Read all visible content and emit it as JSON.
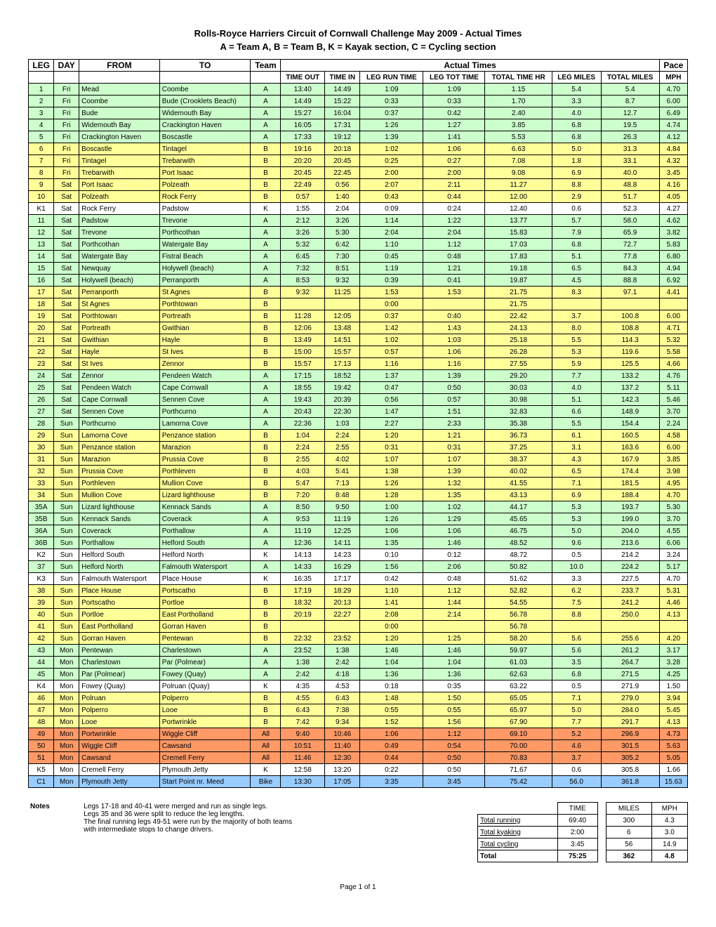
{
  "title": "Rolls-Royce Harriers Circuit of Cornwall Challenge May 2009 - Actual Times",
  "subtitle": "A = Team A, B = Team B, K = Kayak section, C = Cycling section",
  "footer": "Page 1 of 1",
  "headers": {
    "leg": "LEG",
    "day": "DAY",
    "from": "FROM",
    "to": "TO",
    "team": "Team",
    "actual_times": "Actual Times",
    "pace": "Pace",
    "time_out": "TIME OUT",
    "time_in": "TIME IN",
    "leg_run_time": "LEG RUN TIME",
    "leg_tot_time": "LEG TOT TIME",
    "total_time_hr": "TOTAL TIME HR",
    "leg_miles": "LEG MILES",
    "total_miles": "TOTAL MILES",
    "mph": "MPH"
  },
  "colors": {
    "A": "#ccffcc",
    "B": "#ffff99",
    "K": "#ffffff",
    "All": "#ff9966",
    "Bike": "#99ccff"
  },
  "rows": [
    {
      "leg": "1",
      "day": "Fri",
      "from": "Mead",
      "to": "Coombe",
      "team": "A",
      "out": "13:40",
      "in": "14:49",
      "run": "1:09",
      "tot": "1:09",
      "thr": "1.15",
      "lmi": "5.4",
      "tmi": "5.4",
      "mph": "4.70"
    },
    {
      "leg": "2",
      "day": "Fri",
      "from": "Coombe",
      "to": "Bude (Crooklets Beach)",
      "team": "A",
      "out": "14:49",
      "in": "15:22",
      "run": "0:33",
      "tot": "0:33",
      "thr": "1.70",
      "lmi": "3.3",
      "tmi": "8.7",
      "mph": "6.00"
    },
    {
      "leg": "3",
      "day": "Fri",
      "from": "Bude",
      "to": "Widemouth Bay",
      "team": "A",
      "out": "15:27",
      "in": "16:04",
      "run": "0:37",
      "tot": "0:42",
      "thr": "2.40",
      "lmi": "4.0",
      "tmi": "12.7",
      "mph": "6.49"
    },
    {
      "leg": "4",
      "day": "Fri",
      "from": "Widemouth Bay",
      "to": "Crackington Haven",
      "team": "A",
      "out": "16:05",
      "in": "17:31",
      "run": "1:26",
      "tot": "1:27",
      "thr": "3.85",
      "lmi": "6.8",
      "tmi": "19.5",
      "mph": "4.74"
    },
    {
      "leg": "5",
      "day": "Fri",
      "from": "Crackington Haven",
      "to": "Boscastle",
      "team": "A",
      "out": "17:33",
      "in": "19:12",
      "run": "1:39",
      "tot": "1:41",
      "thr": "5.53",
      "lmi": "6.8",
      "tmi": "26.3",
      "mph": "4.12"
    },
    {
      "leg": "6",
      "day": "Fri",
      "from": "Boscastle",
      "to": "Tintagel",
      "team": "B",
      "out": "19:16",
      "in": "20:18",
      "run": "1:02",
      "tot": "1:06",
      "thr": "6.63",
      "lmi": "5.0",
      "tmi": "31.3",
      "mph": "4.84"
    },
    {
      "leg": "7",
      "day": "Fri",
      "from": "Tintagel",
      "to": "Trebarwith",
      "team": "B",
      "out": "20:20",
      "in": "20:45",
      "run": "0:25",
      "tot": "0:27",
      "thr": "7.08",
      "lmi": "1.8",
      "tmi": "33.1",
      "mph": "4.32"
    },
    {
      "leg": "8",
      "day": "Fri",
      "from": "Trebarwith",
      "to": "Port Isaac",
      "team": "B",
      "out": "20:45",
      "in": "22:45",
      "run": "2:00",
      "tot": "2:00",
      "thr": "9.08",
      "lmi": "6.9",
      "tmi": "40.0",
      "mph": "3.45"
    },
    {
      "leg": "9",
      "day": "Sat",
      "from": "Port Isaac",
      "to": "Polzeath",
      "team": "B",
      "out": "22:49",
      "in": "0:56",
      "run": "2:07",
      "tot": "2:11",
      "thr": "11.27",
      "lmi": "8.8",
      "tmi": "48.8",
      "mph": "4.16"
    },
    {
      "leg": "10",
      "day": "Sat",
      "from": "Polzeath",
      "to": "Rock Ferry",
      "team": "B",
      "out": "0:57",
      "in": "1:40",
      "run": "0:43",
      "tot": "0:44",
      "thr": "12.00",
      "lmi": "2.9",
      "tmi": "51.7",
      "mph": "4.05"
    },
    {
      "leg": "K1",
      "day": "Sat",
      "from": "Rock Ferry",
      "to": "Padstow",
      "team": "K",
      "out": "1:55",
      "in": "2:04",
      "run": "0:09",
      "tot": "0:24",
      "thr": "12.40",
      "lmi": "0.6",
      "tmi": "52.3",
      "mph": "4.27"
    },
    {
      "leg": "11",
      "day": "Sat",
      "from": "Padstow",
      "to": "Trevone",
      "team": "A",
      "out": "2:12",
      "in": "3:26",
      "run": "1:14",
      "tot": "1:22",
      "thr": "13.77",
      "lmi": "5.7",
      "tmi": "58.0",
      "mph": "4.62"
    },
    {
      "leg": "12",
      "day": "Sat",
      "from": "Trevone",
      "to": "Porthcothan",
      "team": "A",
      "out": "3:26",
      "in": "5:30",
      "run": "2:04",
      "tot": "2:04",
      "thr": "15.83",
      "lmi": "7.9",
      "tmi": "65.9",
      "mph": "3.82"
    },
    {
      "leg": "13",
      "day": "Sat",
      "from": "Porthcothan",
      "to": "Watergate Bay",
      "team": "A",
      "out": "5:32",
      "in": "6:42",
      "run": "1:10",
      "tot": "1:12",
      "thr": "17.03",
      "lmi": "6.8",
      "tmi": "72.7",
      "mph": "5.83"
    },
    {
      "leg": "14",
      "day": "Sat",
      "from": "Watergate Bay",
      "to": "Fistral Beach",
      "team": "A",
      "out": "6:45",
      "in": "7:30",
      "run": "0:45",
      "tot": "0:48",
      "thr": "17.83",
      "lmi": "5.1",
      "tmi": "77.8",
      "mph": "6.80"
    },
    {
      "leg": "15",
      "day": "Sat",
      "from": "Newquay",
      "to": "Holywell (beach)",
      "team": "A",
      "out": "7:32",
      "in": "8:51",
      "run": "1:19",
      "tot": "1:21",
      "thr": "19.18",
      "lmi": "6.5",
      "tmi": "84.3",
      "mph": "4.94"
    },
    {
      "leg": "16",
      "day": "Sat",
      "from": "Holywell (beach)",
      "to": "Perranporth",
      "team": "A",
      "out": "8:53",
      "in": "9:32",
      "run": "0:39",
      "tot": "0:41",
      "thr": "19.87",
      "lmi": "4.5",
      "tmi": "88.8",
      "mph": "6.92"
    },
    {
      "leg": "17",
      "day": "Sat",
      "from": "Perranporth",
      "to": "St Agnes",
      "team": "B",
      "out": "9:32",
      "in": "11:25",
      "run": "1:53",
      "tot": "1:53",
      "thr": "21.75",
      "lmi": "8.3",
      "tmi": "97.1",
      "mph": "4.41"
    },
    {
      "leg": "18",
      "day": "Sat",
      "from": "St Agnes",
      "to": "Porthtowan",
      "team": "B",
      "out": "",
      "in": "",
      "run": "0:00",
      "tot": "",
      "thr": "21.75",
      "lmi": "",
      "tmi": "",
      "mph": ""
    },
    {
      "leg": "19",
      "day": "Sat",
      "from": "Porthtowan",
      "to": "Portreath",
      "team": "B",
      "out": "11:28",
      "in": "12:05",
      "run": "0:37",
      "tot": "0:40",
      "thr": "22.42",
      "lmi": "3.7",
      "tmi": "100.8",
      "mph": "6.00"
    },
    {
      "leg": "20",
      "day": "Sat",
      "from": "Portreath",
      "to": "Gwithian",
      "team": "B",
      "out": "12:06",
      "in": "13:48",
      "run": "1:42",
      "tot": "1:43",
      "thr": "24.13",
      "lmi": "8.0",
      "tmi": "108.8",
      "mph": "4.71"
    },
    {
      "leg": "21",
      "day": "Sat",
      "from": "Gwithian",
      "to": "Hayle",
      "team": "B",
      "out": "13:49",
      "in": "14:51",
      "run": "1:02",
      "tot": "1:03",
      "thr": "25.18",
      "lmi": "5.5",
      "tmi": "114.3",
      "mph": "5.32"
    },
    {
      "leg": "22",
      "day": "Sat",
      "from": "Hayle",
      "to": "St Ives",
      "team": "B",
      "out": "15:00",
      "in": "15:57",
      "run": "0:57",
      "tot": "1:06",
      "thr": "26.28",
      "lmi": "5.3",
      "tmi": "119.6",
      "mph": "5.58"
    },
    {
      "leg": "23",
      "day": "Sat",
      "from": "St Ives",
      "to": "Zennor",
      "team": "B",
      "out": "15:57",
      "in": "17:13",
      "run": "1:16",
      "tot": "1:16",
      "thr": "27.55",
      "lmi": "5.9",
      "tmi": "125.5",
      "mph": "4.66"
    },
    {
      "leg": "24",
      "day": "Sat",
      "from": "Zennor",
      "to": "Pendeen Watch",
      "team": "A",
      "out": "17:15",
      "in": "18:52",
      "run": "1:37",
      "tot": "1:39",
      "thr": "29.20",
      "lmi": "7.7",
      "tmi": "133.2",
      "mph": "4.76"
    },
    {
      "leg": "25",
      "day": "Sat",
      "from": "Pendeen Watch",
      "to": "Cape Cornwall",
      "team": "A",
      "out": "18:55",
      "in": "19:42",
      "run": "0:47",
      "tot": "0:50",
      "thr": "30.03",
      "lmi": "4.0",
      "tmi": "137.2",
      "mph": "5.11"
    },
    {
      "leg": "26",
      "day": "Sat",
      "from": "Cape Cornwall",
      "to": "Sennen Cove",
      "team": "A",
      "out": "19:43",
      "in": "20:39",
      "run": "0:56",
      "tot": "0:57",
      "thr": "30.98",
      "lmi": "5.1",
      "tmi": "142.3",
      "mph": "5.46"
    },
    {
      "leg": "27",
      "day": "Sat",
      "from": "Sennen Cove",
      "to": "Porthcurno",
      "team": "A",
      "out": "20:43",
      "in": "22:30",
      "run": "1:47",
      "tot": "1:51",
      "thr": "32.83",
      "lmi": "6.6",
      "tmi": "148.9",
      "mph": "3.70"
    },
    {
      "leg": "28",
      "day": "Sun",
      "from": "Porthcurno",
      "to": "Lamorna Cove",
      "team": "A",
      "out": "22:36",
      "in": "1:03",
      "run": "2:27",
      "tot": "2:33",
      "thr": "35.38",
      "lmi": "5.5",
      "tmi": "154.4",
      "mph": "2.24"
    },
    {
      "leg": "29",
      "day": "Sun",
      "from": "Lamorna Cove",
      "to": "Penzance station",
      "team": "B",
      "out": "1:04",
      "in": "2:24",
      "run": "1:20",
      "tot": "1:21",
      "thr": "36.73",
      "lmi": "6.1",
      "tmi": "160.5",
      "mph": "4.58"
    },
    {
      "leg": "30",
      "day": "Sun",
      "from": "Penzance station",
      "to": "Marazion",
      "team": "B",
      "out": "2:24",
      "in": "2:55",
      "run": "0:31",
      "tot": "0:31",
      "thr": "37.25",
      "lmi": "3.1",
      "tmi": "163.6",
      "mph": "6.00"
    },
    {
      "leg": "31",
      "day": "Sun",
      "from": "Marazion",
      "to": "Prussia Cove",
      "team": "B",
      "out": "2:55",
      "in": "4:02",
      "run": "1:07",
      "tot": "1:07",
      "thr": "38.37",
      "lmi": "4.3",
      "tmi": "167.9",
      "mph": "3.85"
    },
    {
      "leg": "32",
      "day": "Sun",
      "from": "Prussia Cove",
      "to": "Porthleven",
      "team": "B",
      "out": "4:03",
      "in": "5:41",
      "run": "1:38",
      "tot": "1:39",
      "thr": "40.02",
      "lmi": "6.5",
      "tmi": "174.4",
      "mph": "3.98"
    },
    {
      "leg": "33",
      "day": "Sun",
      "from": "Porthleven",
      "to": "Mullion Cove",
      "team": "B",
      "out": "5:47",
      "in": "7:13",
      "run": "1:26",
      "tot": "1:32",
      "thr": "41.55",
      "lmi": "7.1",
      "tmi": "181.5",
      "mph": "4.95"
    },
    {
      "leg": "34",
      "day": "Sun",
      "from": "Mullion Cove",
      "to": "Lizard lighthouse",
      "team": "B",
      "out": "7:20",
      "in": "8:48",
      "run": "1:28",
      "tot": "1:35",
      "thr": "43.13",
      "lmi": "6.9",
      "tmi": "188.4",
      "mph": "4.70"
    },
    {
      "leg": "35A",
      "day": "Sun",
      "from": "Lizard lighthouse",
      "to": "Kennack Sands",
      "team": "A",
      "out": "8:50",
      "in": "9:50",
      "run": "1:00",
      "tot": "1:02",
      "thr": "44.17",
      "lmi": "5.3",
      "tmi": "193.7",
      "mph": "5.30"
    },
    {
      "leg": "35B",
      "day": "Sun",
      "from": "Kennack Sands",
      "to": "Coverack",
      "team": "A",
      "out": "9:53",
      "in": "11:19",
      "run": "1:26",
      "tot": "1:29",
      "thr": "45.65",
      "lmi": "5.3",
      "tmi": "199.0",
      "mph": "3.70"
    },
    {
      "leg": "36A",
      "day": "Sun",
      "from": "Coverack",
      "to": "Porthallow",
      "team": "A",
      "out": "11:19",
      "in": "12:25",
      "run": "1:06",
      "tot": "1:06",
      "thr": "46.75",
      "lmi": "5.0",
      "tmi": "204.0",
      "mph": "4.55"
    },
    {
      "leg": "36B",
      "day": "Sun",
      "from": "Porthallow",
      "to": "Helford South",
      "team": "A",
      "out": "12:36",
      "in": "14:11",
      "run": "1:35",
      "tot": "1:46",
      "thr": "48.52",
      "lmi": "9.6",
      "tmi": "213.6",
      "mph": "6.06"
    },
    {
      "leg": "K2",
      "day": "Sun",
      "from": "Helford South",
      "to": "Helford North",
      "team": "K",
      "out": "14:13",
      "in": "14:23",
      "run": "0:10",
      "tot": "0:12",
      "thr": "48.72",
      "lmi": "0.5",
      "tmi": "214.2",
      "mph": "3.24"
    },
    {
      "leg": "37",
      "day": "Sun",
      "from": "Helford North",
      "to": "Falmouth Watersport",
      "team": "A",
      "out": "14:33",
      "in": "16:29",
      "run": "1:56",
      "tot": "2:06",
      "thr": "50.82",
      "lmi": "10.0",
      "tmi": "224.2",
      "mph": "5.17"
    },
    {
      "leg": "K3",
      "day": "Sun",
      "from": "Falmouth Watersport",
      "to": "Place House",
      "team": "K",
      "out": "16:35",
      "in": "17:17",
      "run": "0:42",
      "tot": "0:48",
      "thr": "51.62",
      "lmi": "3.3",
      "tmi": "227.5",
      "mph": "4.70"
    },
    {
      "leg": "38",
      "day": "Sun",
      "from": "Place House",
      "to": "Portscatho",
      "team": "B",
      "out": "17:19",
      "in": "18:29",
      "run": "1:10",
      "tot": "1:12",
      "thr": "52.82",
      "lmi": "6.2",
      "tmi": "233.7",
      "mph": "5.31"
    },
    {
      "leg": "39",
      "day": "Sun",
      "from": "Portscatho",
      "to": "Portloe",
      "team": "B",
      "out": "18:32",
      "in": "20:13",
      "run": "1:41",
      "tot": "1:44",
      "thr": "54.55",
      "lmi": "7.5",
      "tmi": "241.2",
      "mph": "4.46"
    },
    {
      "leg": "40",
      "day": "Sun",
      "from": "Portloe",
      "to": "East Portholland",
      "team": "B",
      "out": "20:19",
      "in": "22:27",
      "run": "2:08",
      "tot": "2:14",
      "thr": "56.78",
      "lmi": "8.8",
      "tmi": "250.0",
      "mph": "4.13"
    },
    {
      "leg": "41",
      "day": "Sun",
      "from": "East Portholland",
      "to": "Gorran Haven",
      "team": "B",
      "out": "",
      "in": "",
      "run": "0:00",
      "tot": "",
      "thr": "56.78",
      "lmi": "",
      "tmi": "",
      "mph": ""
    },
    {
      "leg": "42",
      "day": "Sun",
      "from": "Gorran Haven",
      "to": "Pentewan",
      "team": "B",
      "out": "22:32",
      "in": "23:52",
      "run": "1:20",
      "tot": "1:25",
      "thr": "58.20",
      "lmi": "5.6",
      "tmi": "255.6",
      "mph": "4.20"
    },
    {
      "leg": "43",
      "day": "Mon",
      "from": "Pentewan",
      "to": "Charlestown",
      "team": "A",
      "out": "23:52",
      "in": "1:38",
      "run": "1:46",
      "tot": "1:46",
      "thr": "59.97",
      "lmi": "5.6",
      "tmi": "261.2",
      "mph": "3.17"
    },
    {
      "leg": "44",
      "day": "Mon",
      "from": "Charlestown",
      "to": "Par (Polmear)",
      "team": "A",
      "out": "1:38",
      "in": "2:42",
      "run": "1:04",
      "tot": "1:04",
      "thr": "61.03",
      "lmi": "3.5",
      "tmi": "264.7",
      "mph": "3.28"
    },
    {
      "leg": "45",
      "day": "Mon",
      "from": "Par (Polmear)",
      "to": "Fowey (Quay)",
      "team": "A",
      "out": "2:42",
      "in": "4:18",
      "run": "1:36",
      "tot": "1:36",
      "thr": "62.63",
      "lmi": "6.8",
      "tmi": "271.5",
      "mph": "4.25"
    },
    {
      "leg": "K4",
      "day": "Mon",
      "from": "Fowey (Quay)",
      "to": "Polruan (Quay)",
      "team": "K",
      "out": "4:35",
      "in": "4:53",
      "run": "0:18",
      "tot": "0:35",
      "thr": "63.22",
      "lmi": "0.5",
      "tmi": "271.9",
      "mph": "1.50"
    },
    {
      "leg": "46",
      "day": "Mon",
      "from": "Polruan",
      "to": "Polperro",
      "team": "B",
      "out": "4:55",
      "in": "6:43",
      "run": "1:48",
      "tot": "1:50",
      "thr": "65.05",
      "lmi": "7.1",
      "tmi": "279.0",
      "mph": "3.94"
    },
    {
      "leg": "47",
      "day": "Mon",
      "from": "Polperro",
      "to": "Looe",
      "team": "B",
      "out": "6:43",
      "in": "7:38",
      "run": "0:55",
      "tot": "0:55",
      "thr": "65.97",
      "lmi": "5.0",
      "tmi": "284.0",
      "mph": "5.45"
    },
    {
      "leg": "48",
      "day": "Mon",
      "from": "Looe",
      "to": "Portwrinkle",
      "team": "B",
      "out": "7:42",
      "in": "9:34",
      "run": "1:52",
      "tot": "1:56",
      "thr": "67.90",
      "lmi": "7.7",
      "tmi": "291.7",
      "mph": "4.13"
    },
    {
      "leg": "49",
      "day": "Mon",
      "from": "Portwrinkle",
      "to": "Wiggle Cliff",
      "team": "All",
      "out": "9:40",
      "in": "10:46",
      "run": "1:06",
      "tot": "1:12",
      "thr": "69.10",
      "lmi": "5.2",
      "tmi": "296.9",
      "mph": "4.73"
    },
    {
      "leg": "50",
      "day": "Mon",
      "from": "Wiggle Cliff",
      "to": "Cawsand",
      "team": "All",
      "out": "10:51",
      "in": "11:40",
      "run": "0:49",
      "tot": "0:54",
      "thr": "70.00",
      "lmi": "4.6",
      "tmi": "301.5",
      "mph": "5.63"
    },
    {
      "leg": "51",
      "day": "Mon",
      "from": "Cawsand",
      "to": "Cremell Ferry",
      "team": "All",
      "out": "11:46",
      "in": "12:30",
      "run": "0:44",
      "tot": "0:50",
      "thr": "70.83",
      "lmi": "3.7",
      "tmi": "305.2",
      "mph": "5.05"
    },
    {
      "leg": "K5",
      "day": "Mon",
      "from": "Cremell Ferry",
      "to": "Plymouth Jetty",
      "team": "K",
      "out": "12:58",
      "in": "13:20",
      "run": "0:22",
      "tot": "0:50",
      "thr": "71.67",
      "lmi": "0.6",
      "tmi": "305.8",
      "mph": "1.66"
    },
    {
      "leg": "C1",
      "day": "Mon",
      "from": "Plymouth Jetty",
      "to": "Start Point nr. Meed",
      "team": "Bike",
      "out": "13:30",
      "in": "17:05",
      "run": "3:35",
      "tot": "3:45",
      "thr": "75.42",
      "lmi": "56.0",
      "tmi": "361.8",
      "mph": "15.63"
    }
  ],
  "notes": {
    "label": "Notes",
    "lines": [
      "Legs 17-18 and 40-41 were merged and run as single legs.",
      "Legs 35 and 36 were split to reduce the leg lengths.",
      "The final running legs 49-51 were run by the majority of both teams",
      "with intermediate stops to change drivers."
    ]
  },
  "summary": {
    "headers": {
      "time": "TIME",
      "miles": "MILES",
      "mph": "MPH"
    },
    "rows": [
      {
        "label": "Total running",
        "time": "69:40",
        "miles": "300",
        "mph": "4.3"
      },
      {
        "label": "Total kyaking",
        "time": "2:00",
        "miles": "6",
        "mph": "3.0"
      },
      {
        "label": "Total cycling",
        "time": "3:45",
        "miles": "56",
        "mph": "14.9"
      },
      {
        "label": "Total",
        "time": "75:25",
        "miles": "362",
        "mph": "4.8",
        "bold": true
      }
    ]
  }
}
